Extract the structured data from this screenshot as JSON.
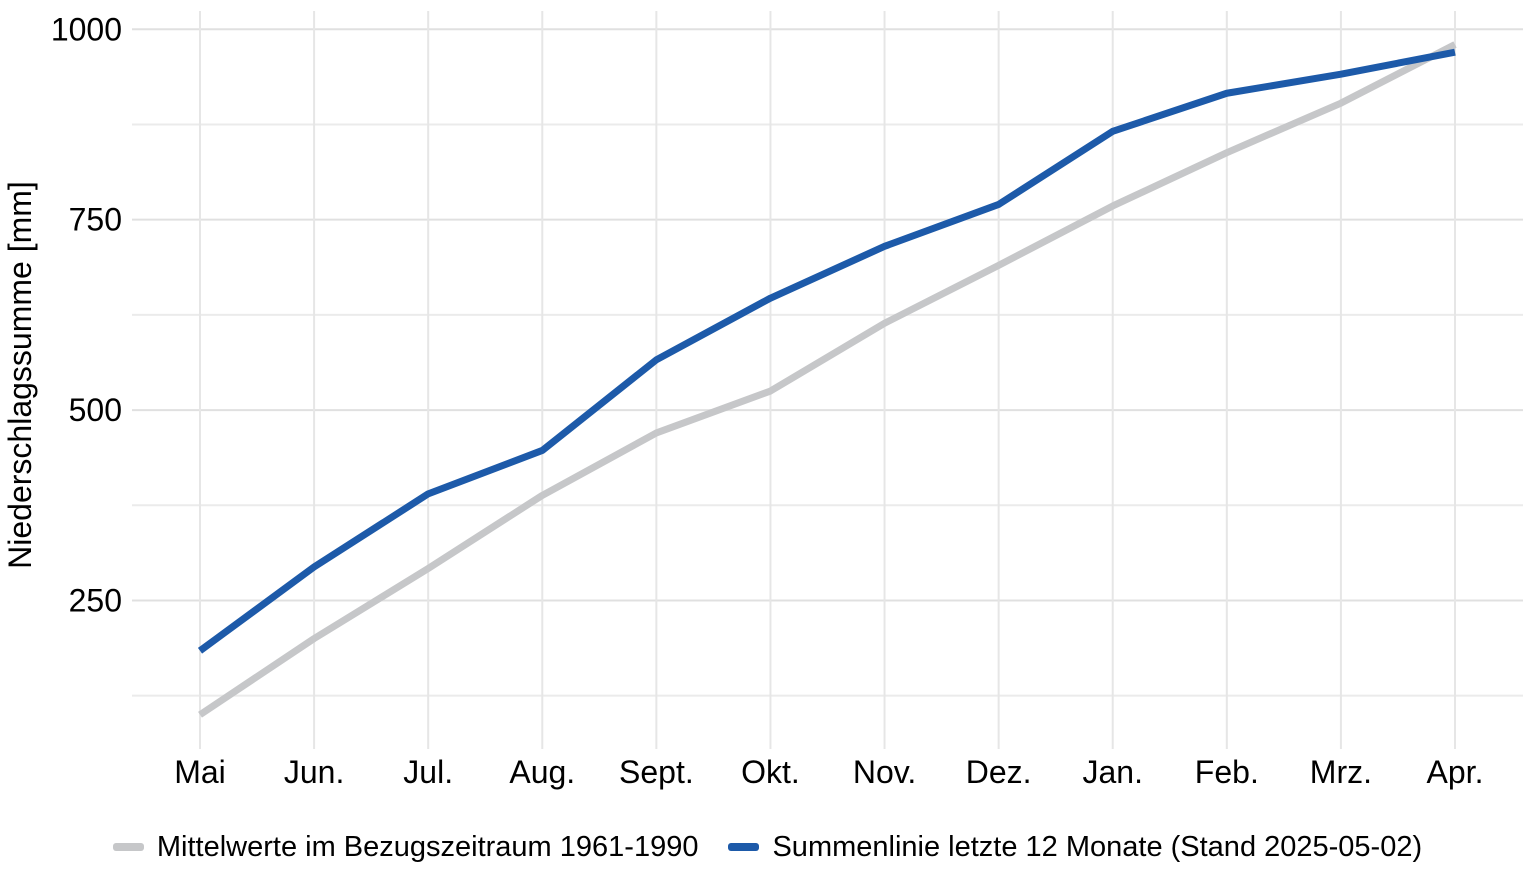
{
  "figure": {
    "y_axis_title": "Niederschlagssumme [mm]"
  },
  "legend": {
    "items": [
      {
        "label": "Mittelwerte im Bezugszeitraum 1961-1990",
        "color": "#c6c7c9"
      },
      {
        "label": "Summenlinie letzte 12 Monate (Stand 2025-05-02)",
        "color": "#1d5aa9"
      }
    ]
  },
  "chart_data": {
    "type": "line",
    "categories": [
      "Mai",
      "Jun.",
      "Jul.",
      "Aug.",
      "Sept.",
      "Okt.",
      "Nov.",
      "Dez.",
      "Jan.",
      "Feb.",
      "Mrz.",
      "Apr."
    ],
    "series": [
      {
        "name": "Mittelwerte im Bezugszeitraum 1961-1990",
        "color": "#c6c7c9",
        "values": [
          100,
          200,
          292,
          388,
          470,
          525,
          614,
          690,
          768,
          838,
          903,
          980
        ]
      },
      {
        "name": "Summenlinie letzte 12 Monate (Stand 2025-05-02)",
        "color": "#1d5aa9",
        "values": [
          184,
          294,
          390,
          447,
          566,
          647,
          715,
          770,
          866,
          916,
          941,
          970
        ]
      }
    ],
    "title": "",
    "xlabel": "",
    "ylabel": "Niederschlagssumme [mm]",
    "ylim": [
      55,
      1024
    ],
    "yticks_major": [
      250,
      500,
      750,
      1000
    ],
    "yticks_minor": [
      125,
      375,
      625,
      875
    ],
    "grid": true,
    "legend_position": "bottom",
    "gridline_color_major": "#e0e0e0",
    "gridline_color_minor": "#ebebeb",
    "gridline_color_vertical": "#e6e6e6"
  }
}
